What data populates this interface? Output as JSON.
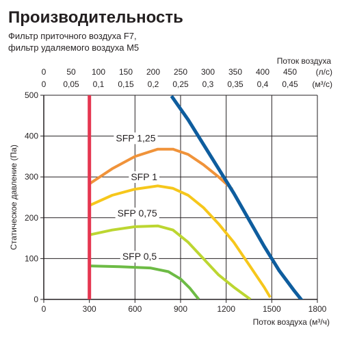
{
  "chart_data": {
    "type": "line",
    "title": "Производительность",
    "subtitle": [
      "Фильтр приточного воздуха F7,",
      "фильтр удаляемого воздуха M5"
    ],
    "xlabel": "Поток воздуха (м³/ч)",
    "ylabel": "Статическое давление (Па)",
    "top_axis_label": "Поток воздуха",
    "top_axis_units": [
      "(л/с)",
      "(м³/с)"
    ],
    "xlim": [
      0,
      1800
    ],
    "ylim": [
      0,
      500
    ],
    "x_ticks": [
      0,
      300,
      600,
      900,
      1200,
      1500,
      1800
    ],
    "x_tick_labels": [
      "0",
      "300",
      "600",
      "900",
      "1200",
      "1500",
      "1800"
    ],
    "y_ticks": [
      0,
      100,
      200,
      300,
      400,
      500
    ],
    "y_tick_labels": [
      "0",
      "100",
      "200",
      "300",
      "400",
      "500"
    ],
    "top_ticks_ls": [
      0,
      50,
      100,
      150,
      200,
      250,
      300,
      350,
      400,
      450
    ],
    "top_ticks_ls_labels": [
      "0",
      "50",
      "100",
      "150",
      "200",
      "250",
      "300",
      "350",
      "400",
      "450"
    ],
    "top_ticks_m3s_labels": [
      "0",
      "0,05",
      "0,1",
      "0,15",
      "0,2",
      "0,25",
      "0,3",
      "0,35",
      "0,4",
      "0,45"
    ],
    "grid": true,
    "series": [
      {
        "name": "SFP 0,5",
        "color": "#6dbb45",
        "points": [
          [
            300,
            82
          ],
          [
            500,
            80
          ],
          [
            700,
            77
          ],
          [
            820,
            68
          ],
          [
            900,
            50
          ],
          [
            960,
            28
          ],
          [
            1020,
            0
          ]
        ]
      },
      {
        "name": "SFP 0,75",
        "color": "#bcd631",
        "points": [
          [
            300,
            158
          ],
          [
            450,
            170
          ],
          [
            600,
            178
          ],
          [
            750,
            180
          ],
          [
            850,
            170
          ],
          [
            950,
            140
          ],
          [
            1050,
            100
          ],
          [
            1150,
            60
          ],
          [
            1250,
            30
          ],
          [
            1360,
            0
          ]
        ]
      },
      {
        "name": "SFP 1",
        "color": "#f6c71b",
        "points": [
          [
            300,
            230
          ],
          [
            450,
            255
          ],
          [
            600,
            270
          ],
          [
            750,
            278
          ],
          [
            850,
            272
          ],
          [
            950,
            255
          ],
          [
            1050,
            225
          ],
          [
            1150,
            185
          ],
          [
            1250,
            140
          ],
          [
            1350,
            85
          ],
          [
            1450,
            30
          ],
          [
            1490,
            5
          ]
        ]
      },
      {
        "name": "SFP 1,25",
        "color": "#f0933a",
        "points": [
          [
            300,
            283
          ],
          [
            450,
            320
          ],
          [
            600,
            350
          ],
          [
            750,
            368
          ],
          [
            850,
            368
          ],
          [
            950,
            355
          ],
          [
            1050,
            330
          ],
          [
            1150,
            300
          ],
          [
            1240,
            270
          ]
        ]
      },
      {
        "name": "",
        "color": "#0e5d9e",
        "points": [
          [
            840,
            498
          ],
          [
            950,
            440
          ],
          [
            1050,
            380
          ],
          [
            1150,
            320
          ],
          [
            1250,
            260
          ],
          [
            1350,
            195
          ],
          [
            1450,
            130
          ],
          [
            1550,
            70
          ],
          [
            1650,
            20
          ],
          [
            1715,
            -10
          ]
        ]
      },
      {
        "name": "",
        "color": "#e53650",
        "points": [
          [
            300,
            500
          ],
          [
            300,
            0
          ]
        ]
      }
    ],
    "annotations": [
      {
        "text": "SFP 1,25",
        "x": 605,
        "y": 387
      },
      {
        "text": "SFP 1",
        "x": 660,
        "y": 292
      },
      {
        "text": "SFP 0,75",
        "x": 615,
        "y": 203
      },
      {
        "text": "SFP 0,5",
        "x": 630,
        "y": 97
      }
    ]
  }
}
